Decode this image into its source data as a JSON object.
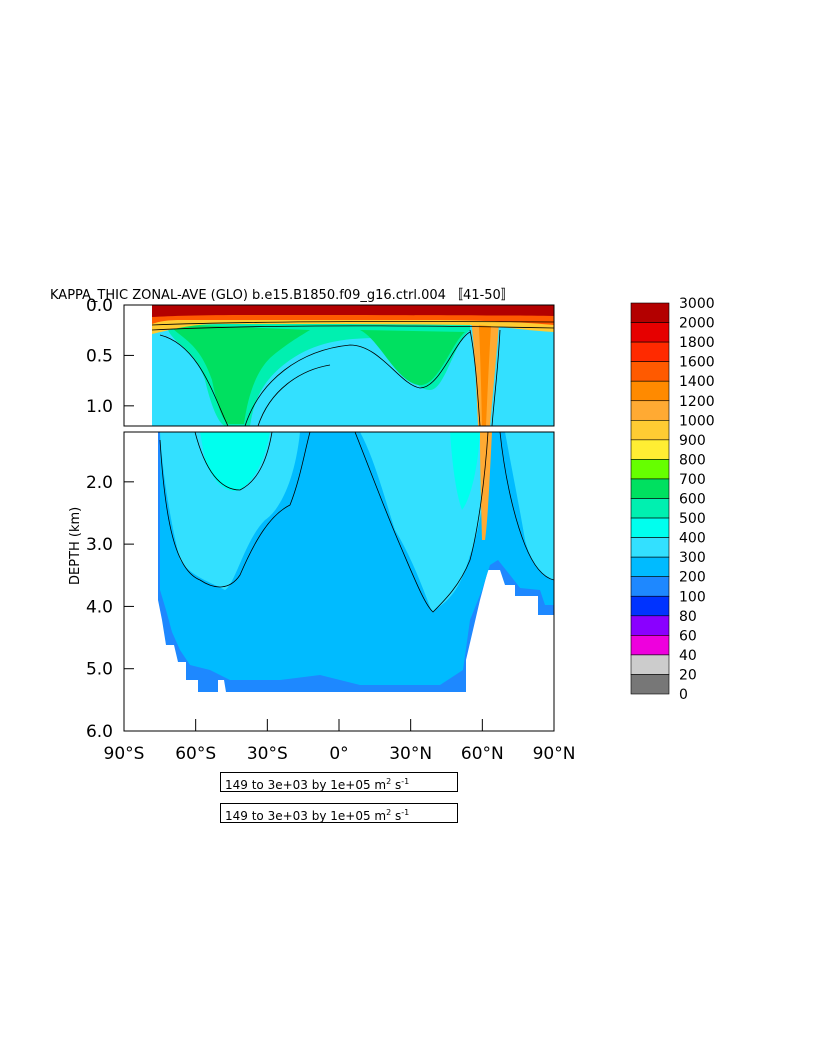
{
  "chart_data": {
    "type": "heatmap",
    "title": "KAPPA_THIC ZONAL-AVE (GLO) b.e15.B1850.f09_g16.ctrl.004 〚41-50〛",
    "ylabel": "DEPTH (km)",
    "x_ticks": [
      "90°S",
      "60°S",
      "30°S",
      "0°",
      "30°N",
      "60°N",
      "90°N"
    ],
    "x_tick_values": [
      -90,
      -60,
      -30,
      0,
      30,
      60,
      90
    ],
    "xlim": [
      -90,
      90
    ],
    "upper_panel": {
      "ylim": [
        0.0,
        1.2
      ],
      "y_ticks": [
        "0.0",
        "0.5",
        "1.0"
      ],
      "y_tick_values": [
        0.0,
        0.5,
        1.0
      ]
    },
    "lower_panel": {
      "ylim": [
        1.2,
        6.0
      ],
      "y_ticks": [
        "2.0",
        "3.0",
        "4.0",
        "5.0",
        "6.0"
      ],
      "y_tick_values": [
        2.0,
        3.0,
        4.0,
        5.0,
        6.0
      ]
    },
    "colorbar": {
      "labels": [
        "3000",
        "2000",
        "1800",
        "1600",
        "1400",
        "1200",
        "1000",
        "900",
        "800",
        "700",
        "600",
        "500",
        "400",
        "300",
        "200",
        "100",
        "80",
        "60",
        "40",
        "20",
        "0"
      ],
      "colors": [
        "#b30000",
        "#e60000",
        "#ff2a00",
        "#ff5a00",
        "#ff8a00",
        "#ffaa33",
        "#ffcc33",
        "#ffee33",
        "#66ff00",
        "#00e060",
        "#00f0b0",
        "#00ffee",
        "#33e0ff",
        "#00bbff",
        "#1e88ff",
        "#0033ff",
        "#8a00ff",
        "#ee00dd",
        "#cccccc",
        "#777777"
      ]
    },
    "levels_label": "149 to 3e+03 by 1e+05 m",
    "levels_sup1": "2",
    "levels_mid": " s",
    "levels_sup2": "-1"
  }
}
